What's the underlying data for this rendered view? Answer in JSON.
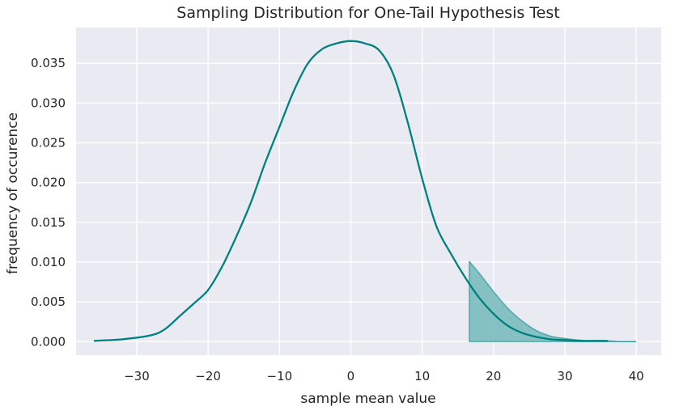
{
  "chart_data": {
    "type": "area",
    "title": "Sampling Distribution for One-Tail Hypothesis Test",
    "xlabel": "sample mean value",
    "ylabel": "frequency of occurence",
    "xlim": [
      -38.5,
      43.5
    ],
    "ylim": [
      -0.0017,
      0.0395
    ],
    "xticks": [
      -30,
      -20,
      -10,
      0,
      10,
      20,
      30,
      40
    ],
    "xtick_labels": [
      "−30",
      "−20",
      "−10",
      "0",
      "10",
      "20",
      "30",
      "40"
    ],
    "yticks": [
      0.0,
      0.005,
      0.01,
      0.015,
      0.02,
      0.025,
      0.03,
      0.035
    ],
    "ytick_labels": [
      "0.000",
      "0.005",
      "0.010",
      "0.015",
      "0.020",
      "0.025",
      "0.030",
      "0.035"
    ],
    "grid": true,
    "series": [
      {
        "x": [
          -36,
          -32,
          -28,
          -26,
          -24,
          -22,
          -20,
          -18,
          -16,
          -14,
          -12,
          -10,
          -8,
          -6,
          -4,
          -2,
          0,
          2,
          4,
          6,
          8,
          10,
          12,
          14,
          16,
          18,
          20,
          22,
          24,
          26,
          28,
          30,
          32,
          34,
          36
        ],
        "y": [
          0.0001,
          0.0003,
          0.0008,
          0.0016,
          0.0032,
          0.0048,
          0.0065,
          0.0095,
          0.0133,
          0.0175,
          0.0225,
          0.027,
          0.0315,
          0.035,
          0.0368,
          0.0375,
          0.0378,
          0.0375,
          0.0366,
          0.0335,
          0.0275,
          0.0205,
          0.0145,
          0.0111,
          0.0081,
          0.0055,
          0.0035,
          0.002,
          0.0011,
          0.0006,
          0.0003,
          0.0002,
          0.0001,
          0.0001,
          0.0001
        ]
      }
    ],
    "shaded_region": {
      "x_start": 16.6,
      "x_end": 40,
      "x": [
        16.6,
        18,
        20,
        22,
        24,
        26,
        28,
        30,
        32,
        34,
        36,
        38,
        40
      ],
      "y": [
        0.0101,
        0.0086,
        0.0063,
        0.0042,
        0.0026,
        0.0014,
        0.0007,
        0.0004,
        0.0002,
        0.0001,
        0.0001,
        0.0,
        0.0
      ]
    },
    "colors": {
      "line": "#008080",
      "fill": "#7fbfbf",
      "plot_background": "#eaeaf2",
      "grid": "#ffffff"
    }
  }
}
